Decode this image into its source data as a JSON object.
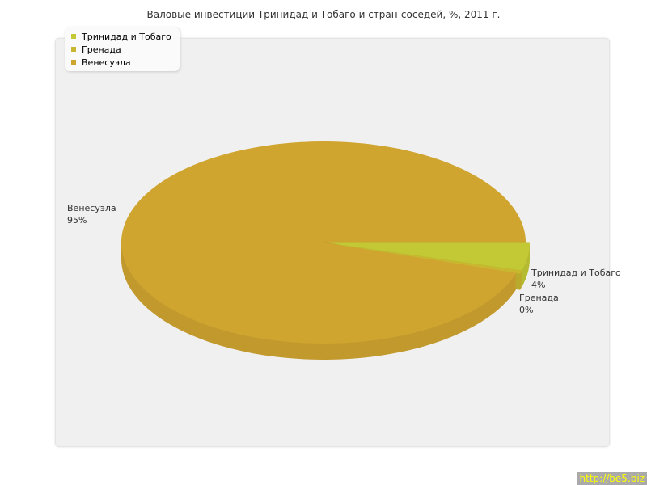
{
  "title": "Валовые инвестиции Тринидад и Тобаго и стран-соседей, %, 2011 г.",
  "watermark": "http://be5.biz",
  "chart_data": {
    "type": "pie",
    "title": "Валовые инвестиции Тринидад и Тобаго и стран-соседей, %, 2011 г.",
    "categories": [
      "Тринидад и Тобаго",
      "Гренада",
      "Венесуэла"
    ],
    "values": [
      4.4,
      0.5,
      95.1
    ],
    "labels": [
      "4%",
      "0%",
      "95%"
    ],
    "colors": [
      "#c3c935",
      "#c8b72f",
      "#cfa530"
    ],
    "legend_position": "top-left",
    "three_d": true
  }
}
